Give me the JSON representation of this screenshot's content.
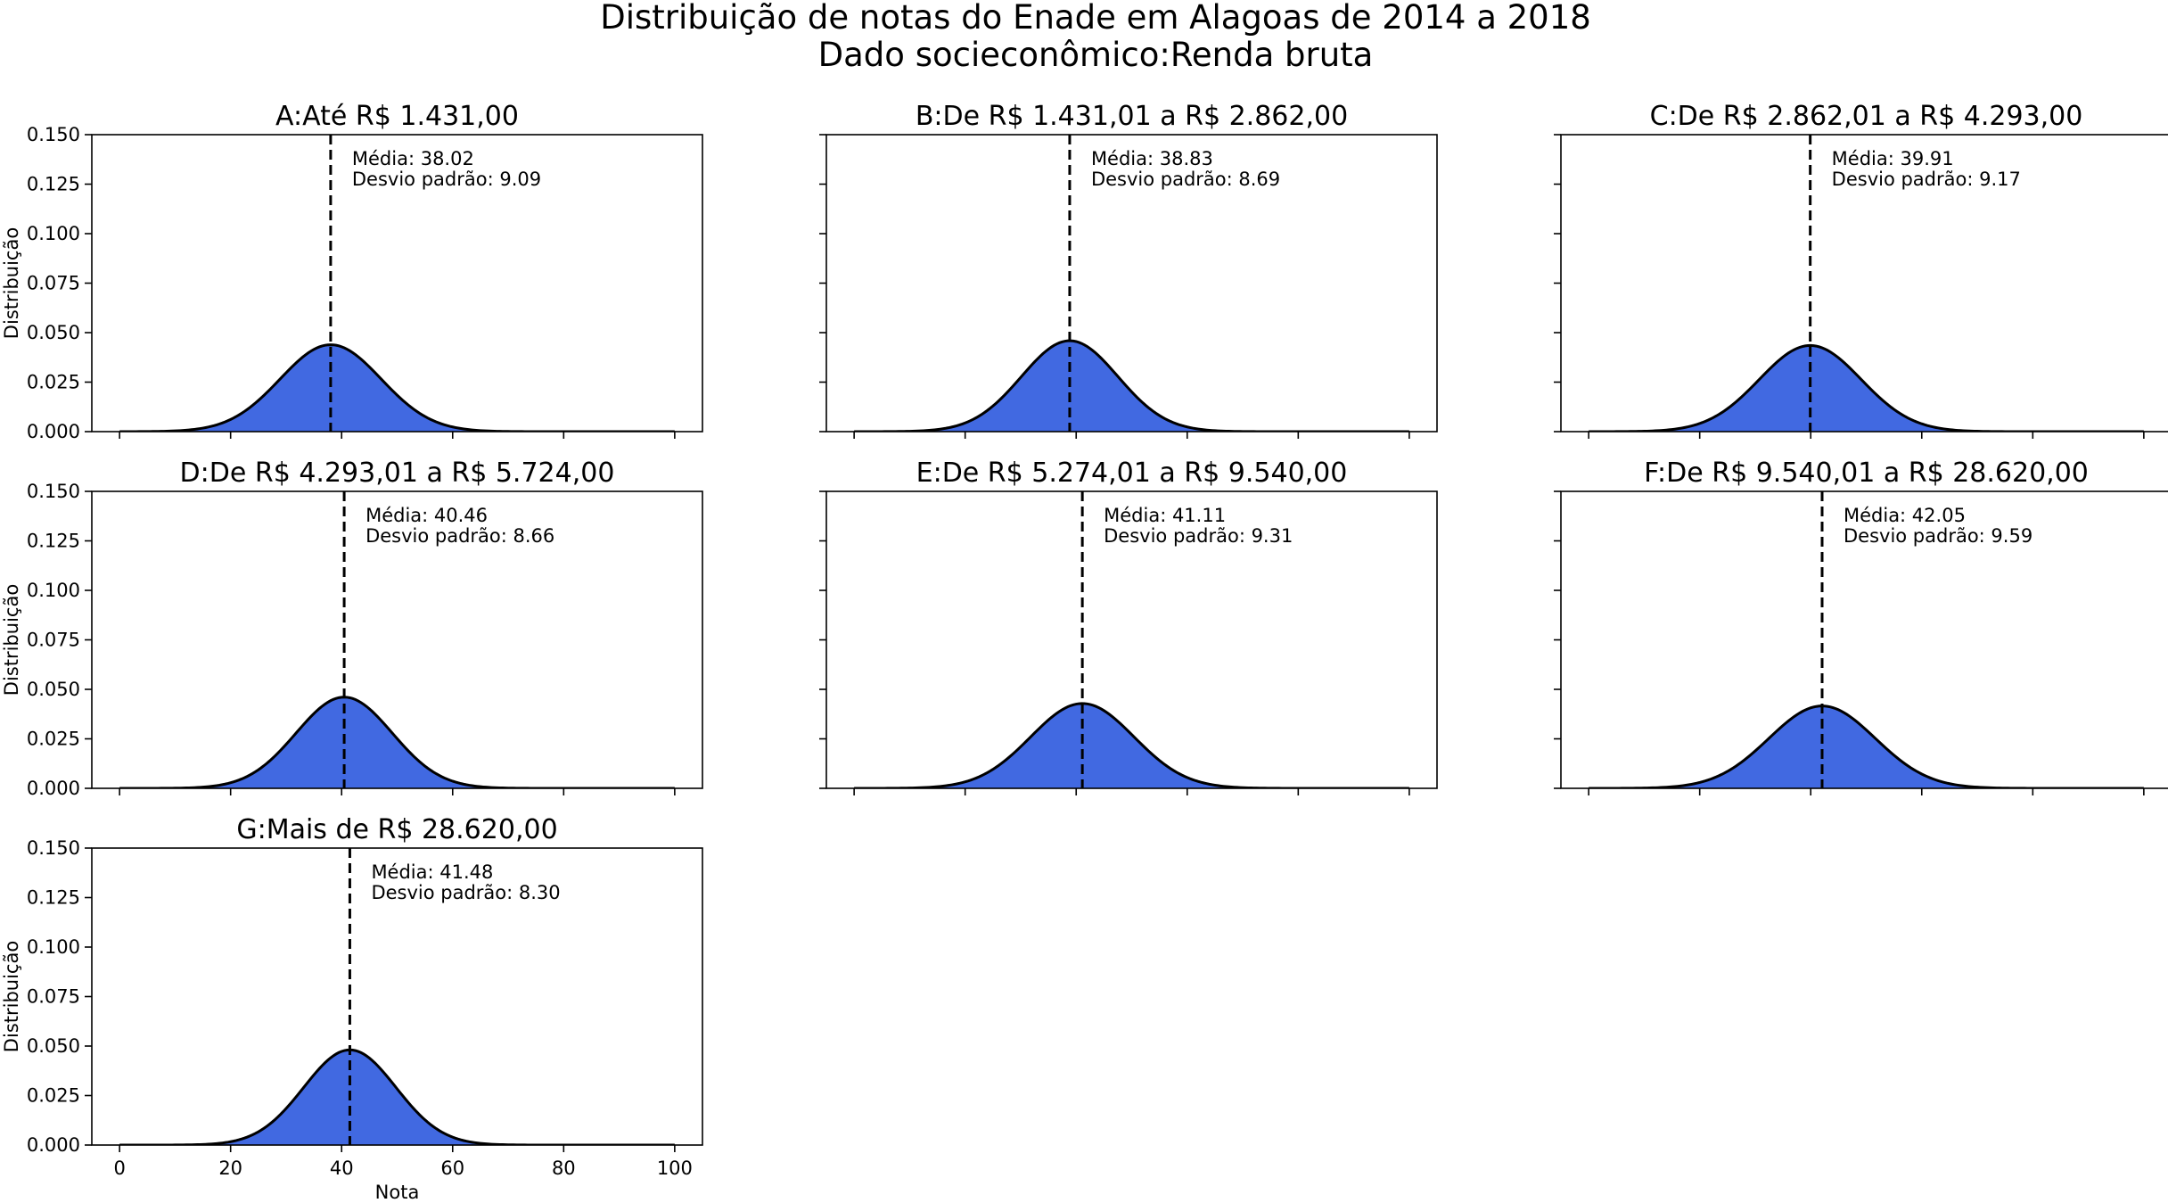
{
  "figure": {
    "title_line1": "Distribuição de notas do Enade em Alagoas de 2014 a 2018",
    "title_line2": "Dado socieconômico:Renda bruta"
  },
  "chart_data": [
    {
      "type": "area",
      "id": "A",
      "title": "A:Até R$ 1.431,00",
      "mean": 38.02,
      "std": 9.09,
      "mean_label": "Média: 38.02",
      "std_label": "Desvio padrão: 9.09",
      "xlabel": "",
      "ylabel": "Distribuição",
      "xlim": [
        -5,
        105
      ],
      "ylim": [
        0,
        0.15
      ]
    },
    {
      "type": "area",
      "id": "B",
      "title": "B:De R$ 1.431,01 a R$ 2.862,00",
      "mean": 38.83,
      "std": 8.69,
      "mean_label": "Média: 38.83",
      "std_label": "Desvio padrão: 8.69",
      "xlabel": "",
      "ylabel": "",
      "xlim": [
        -5,
        105
      ],
      "ylim": [
        0,
        0.15
      ]
    },
    {
      "type": "area",
      "id": "C",
      "title": "C:De R$ 2.862,01 a R$ 4.293,00",
      "mean": 39.91,
      "std": 9.17,
      "mean_label": "Média: 39.91",
      "std_label": "Desvio padrão: 9.17",
      "xlabel": "",
      "ylabel": "",
      "xlim": [
        -5,
        105
      ],
      "ylim": [
        0,
        0.15
      ]
    },
    {
      "type": "area",
      "id": "D",
      "title": "D:De R$ 4.293,01 a R$ 5.724,00",
      "mean": 40.46,
      "std": 8.66,
      "mean_label": "Média: 40.46",
      "std_label": "Desvio padrão: 8.66",
      "xlabel": "",
      "ylabel": "Distribuição",
      "xlim": [
        -5,
        105
      ],
      "ylim": [
        0,
        0.15
      ]
    },
    {
      "type": "area",
      "id": "E",
      "title": "E:De R$ 5.274,01 a R$ 9.540,00",
      "mean": 41.11,
      "std": 9.31,
      "mean_label": "Média: 41.11",
      "std_label": "Desvio padrão: 9.31",
      "xlabel": "",
      "ylabel": "",
      "xlim": [
        -5,
        105
      ],
      "ylim": [
        0,
        0.15
      ]
    },
    {
      "type": "area",
      "id": "F",
      "title": "F:De R$ 9.540,01 a R$ 28.620,00",
      "mean": 42.05,
      "std": 9.59,
      "mean_label": "Média: 42.05",
      "std_label": "Desvio padrão: 9.59",
      "xlabel": "",
      "ylabel": "",
      "xlim": [
        -5,
        105
      ],
      "ylim": [
        0,
        0.15
      ]
    },
    {
      "type": "area",
      "id": "G",
      "title": "G:Mais de R$ 28.620,00",
      "mean": 41.48,
      "std": 8.3,
      "mean_label": "Média: 41.48",
      "std_label": "Desvio padrão: 8.30",
      "xlabel": "Nota",
      "ylabel": "Distribuição",
      "xlim": [
        -5,
        105
      ],
      "ylim": [
        0,
        0.15
      ]
    }
  ],
  "axes": {
    "xticks": [
      0,
      20,
      40,
      60,
      80,
      100
    ],
    "xtick_labels": [
      "0",
      "20",
      "40",
      "60",
      "80",
      "100"
    ],
    "yticks": [
      0,
      0.025,
      0.05,
      0.075,
      0.1,
      0.125,
      0.15
    ],
    "ytick_labels": [
      "0.000",
      "0.025",
      "0.050",
      "0.075",
      "0.100",
      "0.125",
      "0.150"
    ],
    "grid": false
  },
  "colors": {
    "fill": "#4169e1",
    "curve": "#000000",
    "mean_line": "#000000"
  }
}
